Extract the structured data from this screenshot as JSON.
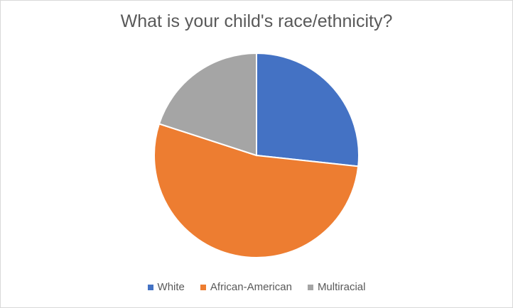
{
  "chart_data": {
    "type": "pie",
    "title": "What is your child's race/ethnicity?",
    "categories": [
      "White",
      "African-American",
      "Multiracial"
    ],
    "values": [
      26.7,
      53.3,
      20.0
    ],
    "colors": [
      "#4472c4",
      "#ed7d31",
      "#a5a5a5"
    ],
    "start_angle": "12 o'clock, clockwise",
    "legend_position": "bottom"
  }
}
